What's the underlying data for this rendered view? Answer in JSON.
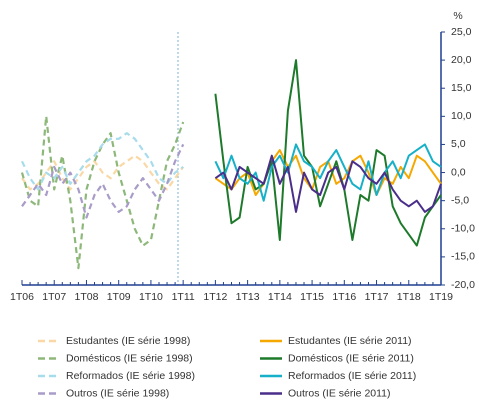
{
  "chart_data": {
    "type": "line",
    "y_unit": "%",
    "categories": [
      "1T06",
      null,
      null,
      null,
      "1T07",
      null,
      null,
      null,
      "1T08",
      null,
      null,
      null,
      "1T09",
      null,
      null,
      null,
      "1T10",
      null,
      null,
      null,
      "1T11",
      null,
      null,
      null,
      "1T12",
      null,
      null,
      null,
      "1T13",
      null,
      null,
      null,
      "1T14",
      null,
      null,
      null,
      "1T15",
      null,
      null,
      null,
      "1T16",
      null,
      null,
      null,
      "1T17",
      null,
      null,
      null,
      "1T18",
      null,
      null,
      null,
      "1T19"
    ],
    "ylim": [
      -20,
      25
    ],
    "yticks": [
      {
        "value": 25,
        "label": "25,0"
      },
      {
        "value": 20,
        "label": "20,0"
      },
      {
        "value": 15,
        "label": "15,0"
      },
      {
        "value": 10,
        "label": "10,0"
      },
      {
        "value": 5,
        "label": "5,0"
      },
      {
        "value": 0,
        "label": "0,0"
      },
      {
        "value": -5,
        "label": "-5,0"
      },
      {
        "value": -10,
        "label": "-10,0"
      },
      {
        "value": -15,
        "label": "-15,0"
      },
      {
        "value": -20,
        "label": "-20,0"
      }
    ],
    "series": [
      {
        "name": "Estudantes (IE série 1998)",
        "color": "#f9d8a6",
        "dashed": true,
        "values": [
          -1,
          -3,
          -2,
          0,
          2,
          -1,
          -3,
          -1,
          1,
          2,
          0,
          -1,
          1,
          2,
          3,
          2,
          0,
          -2,
          -3,
          -1,
          1,
          null,
          null,
          null,
          null,
          null,
          null,
          null,
          null,
          null,
          null,
          null,
          null,
          null,
          null,
          null,
          null,
          null,
          null,
          null,
          null,
          null,
          null,
          null,
          null,
          null,
          null,
          null,
          null,
          null,
          null,
          null,
          null
        ]
      },
      {
        "name": "Estudantes (IE série 2011)",
        "color": "#f5a800",
        "dashed": false,
        "values": [
          null,
          null,
          null,
          null,
          null,
          null,
          null,
          null,
          null,
          null,
          null,
          null,
          null,
          null,
          null,
          null,
          null,
          null,
          null,
          null,
          null,
          null,
          null,
          null,
          -1,
          -2,
          -3,
          -1,
          0,
          -4,
          -2,
          2,
          4,
          1,
          3,
          -1,
          -3,
          1,
          2,
          -2,
          -1,
          2,
          3,
          0,
          -4,
          -1,
          -2,
          1,
          -1,
          3,
          2,
          0,
          -2
        ]
      },
      {
        "name": "Domésticos (IE série 1998)",
        "color": "#8db87a",
        "dashed": true,
        "values": [
          0,
          -5,
          -6,
          10,
          -3,
          3,
          -5,
          -17,
          -3,
          2,
          5,
          7,
          0,
          -5,
          -10,
          -13,
          -12,
          -5,
          2,
          5,
          9,
          null,
          null,
          null,
          null,
          null,
          null,
          null,
          null,
          null,
          null,
          null,
          null,
          null,
          null,
          null,
          null,
          null,
          null,
          null,
          null,
          null,
          null,
          null,
          null,
          null,
          null,
          null,
          null,
          null,
          null,
          null,
          null
        ]
      },
      {
        "name": "Domésticos (IE série 2011)",
        "color": "#1e7a2b",
        "dashed": false,
        "values": [
          null,
          null,
          null,
          null,
          null,
          null,
          null,
          null,
          null,
          null,
          null,
          null,
          null,
          null,
          null,
          null,
          null,
          null,
          null,
          null,
          null,
          null,
          null,
          null,
          14,
          2,
          -9,
          -8,
          1,
          -3,
          -2,
          2,
          -12,
          11,
          20,
          3,
          1,
          -6,
          -2,
          2,
          -3,
          -12,
          -4,
          -5,
          4,
          3,
          -6,
          -9,
          -11,
          -13,
          -8,
          -6,
          -4
        ]
      },
      {
        "name": "Reformados (IE série 1998)",
        "color": "#a8dceb",
        "dashed": true,
        "values": [
          2,
          -1,
          -3,
          0,
          -1,
          1,
          -2,
          0,
          2,
          3,
          5,
          6,
          6,
          7,
          6,
          4,
          2,
          -1,
          -2,
          0,
          1,
          null,
          null,
          null,
          null,
          null,
          null,
          null,
          null,
          null,
          null,
          null,
          null,
          null,
          null,
          null,
          null,
          null,
          null,
          null,
          null,
          null,
          null,
          null,
          null,
          null,
          null,
          null,
          null,
          null,
          null,
          null,
          null
        ]
      },
      {
        "name": "Reformados (IE série 2011)",
        "color": "#16b0c8",
        "dashed": false,
        "values": [
          null,
          null,
          null,
          null,
          null,
          null,
          null,
          null,
          null,
          null,
          null,
          null,
          null,
          null,
          null,
          null,
          null,
          null,
          null,
          null,
          null,
          null,
          null,
          null,
          2,
          -1,
          3,
          -1,
          -2,
          0,
          -5,
          1,
          3,
          0,
          5,
          2,
          1,
          -1,
          2,
          4,
          1,
          -2,
          -3,
          2,
          -4,
          0,
          2,
          -1,
          3,
          4,
          5,
          2,
          1
        ]
      },
      {
        "name": "Outros (IE série 1998)",
        "color": "#a99cc9",
        "dashed": true,
        "values": [
          -6,
          -4,
          -2,
          -4,
          1,
          -2,
          0,
          -3,
          -8,
          -4,
          -2,
          -5,
          -7,
          -6,
          -3,
          -1,
          -3,
          -5,
          -2,
          2,
          5,
          null,
          null,
          null,
          null,
          null,
          null,
          null,
          null,
          null,
          null,
          null,
          null,
          null,
          null,
          null,
          null,
          null,
          null,
          null,
          null,
          null,
          null,
          null,
          null,
          null,
          null,
          null,
          null,
          null,
          null,
          null,
          null
        ]
      },
      {
        "name": "Outros (IE série 2011)",
        "color": "#4a2e8a",
        "dashed": false,
        "values": [
          null,
          null,
          null,
          null,
          null,
          null,
          null,
          null,
          null,
          null,
          null,
          null,
          null,
          null,
          null,
          null,
          null,
          null,
          null,
          null,
          null,
          null,
          null,
          null,
          -1,
          0,
          -3,
          1,
          0,
          -1,
          -2,
          3,
          -2,
          1,
          -7,
          0,
          -3,
          -4,
          0,
          1,
          -3,
          2,
          1,
          -1,
          -2,
          0,
          -3,
          -5,
          -6,
          -5,
          -7,
          -6,
          -2
        ]
      }
    ]
  }
}
